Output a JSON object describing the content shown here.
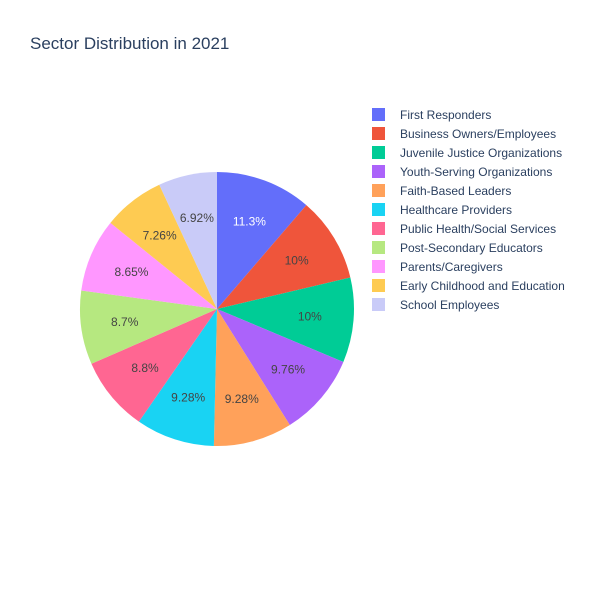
{
  "chart_data": {
    "type": "pie",
    "title": "Sector Distribution in 2021",
    "slices": [
      {
        "label": "First Responders",
        "value": 11.3,
        "text": "11.3%",
        "color": "#636efa",
        "text_color": "#ffffff"
      },
      {
        "label": "Business Owners/Employees",
        "value": 10.0,
        "text": "10%",
        "color": "#EF553B",
        "text_color": "#444444"
      },
      {
        "label": "Juvenile Justice Organizations",
        "value": 10.0,
        "text": "10%",
        "color": "#00cc96",
        "text_color": "#444444"
      },
      {
        "label": "Youth-Serving Organizations",
        "value": 9.76,
        "text": "9.76%",
        "color": "#ab63fa",
        "text_color": "#444444"
      },
      {
        "label": "Faith-Based Leaders",
        "value": 9.28,
        "text": "9.28%",
        "color": "#FFA15A",
        "text_color": "#444444"
      },
      {
        "label": "Healthcare Providers",
        "value": 9.28,
        "text": "9.28%",
        "color": "#19d3f3",
        "text_color": "#444444"
      },
      {
        "label": "Public Health/Social Services",
        "value": 8.8,
        "text": "8.8%",
        "color": "#FF6692",
        "text_color": "#444444"
      },
      {
        "label": "Post-Secondary Educators",
        "value": 8.7,
        "text": "8.7%",
        "color": "#B6E880",
        "text_color": "#444444"
      },
      {
        "label": "Parents/Caregivers",
        "value": 8.65,
        "text": "8.65%",
        "color": "#FF97FF",
        "text_color": "#444444"
      },
      {
        "label": "Early Childhood and Education",
        "value": 7.26,
        "text": "7.26%",
        "color": "#FECB52",
        "text_color": "#444444"
      },
      {
        "label": "School Employees",
        "value": 6.92,
        "text": "6.92%",
        "color": "#c9cbf8",
        "text_color": "#444444"
      }
    ],
    "start_angle_deg": 0,
    "direction": "clockwise",
    "legend_position": "right"
  }
}
